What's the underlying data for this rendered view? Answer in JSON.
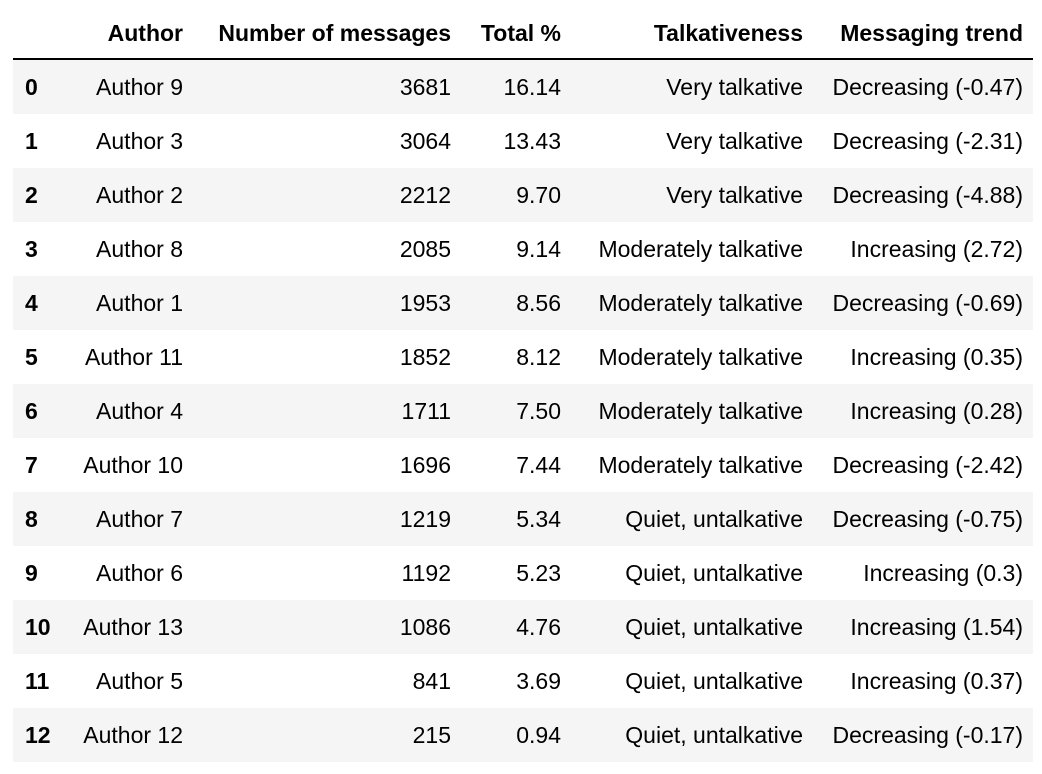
{
  "table": {
    "columns": {
      "index": "",
      "author": "Author",
      "messages": "Number of messages",
      "total": "Total %",
      "talkativeness": "Talkativeness",
      "trend": "Messaging trend"
    },
    "rows": [
      {
        "index": "0",
        "author": "Author 9",
        "messages": "3681",
        "total": "16.14",
        "talkativeness": "Very talkative",
        "trend": "Decreasing (-0.47)"
      },
      {
        "index": "1",
        "author": "Author 3",
        "messages": "3064",
        "total": "13.43",
        "talkativeness": "Very talkative",
        "trend": "Decreasing (-2.31)"
      },
      {
        "index": "2",
        "author": "Author 2",
        "messages": "2212",
        "total": "9.70",
        "talkativeness": "Very talkative",
        "trend": "Decreasing (-4.88)"
      },
      {
        "index": "3",
        "author": "Author 8",
        "messages": "2085",
        "total": "9.14",
        "talkativeness": "Moderately talkative",
        "trend": "Increasing (2.72)"
      },
      {
        "index": "4",
        "author": "Author 1",
        "messages": "1953",
        "total": "8.56",
        "talkativeness": "Moderately talkative",
        "trend": "Decreasing (-0.69)"
      },
      {
        "index": "5",
        "author": "Author 11",
        "messages": "1852",
        "total": "8.12",
        "talkativeness": "Moderately talkative",
        "trend": "Increasing (0.35)"
      },
      {
        "index": "6",
        "author": "Author 4",
        "messages": "1711",
        "total": "7.50",
        "talkativeness": "Moderately talkative",
        "trend": "Increasing (0.28)"
      },
      {
        "index": "7",
        "author": "Author 10",
        "messages": "1696",
        "total": "7.44",
        "talkativeness": "Moderately talkative",
        "trend": "Decreasing (-2.42)"
      },
      {
        "index": "8",
        "author": "Author 7",
        "messages": "1219",
        "total": "5.34",
        "talkativeness": "Quiet, untalkative",
        "trend": "Decreasing (-0.75)"
      },
      {
        "index": "9",
        "author": "Author 6",
        "messages": "1192",
        "total": "5.23",
        "talkativeness": "Quiet, untalkative",
        "trend": "Increasing (0.3)"
      },
      {
        "index": "10",
        "author": "Author 13",
        "messages": "1086",
        "total": "4.76",
        "talkativeness": "Quiet, untalkative",
        "trend": "Increasing (1.54)"
      },
      {
        "index": "11",
        "author": "Author 5",
        "messages": "841",
        "total": "3.69",
        "talkativeness": "Quiet, untalkative",
        "trend": "Increasing (0.37)"
      },
      {
        "index": "12",
        "author": "Author 12",
        "messages": "215",
        "total": "0.94",
        "talkativeness": "Quiet, untalkative",
        "trend": "Decreasing (-0.17)"
      }
    ]
  }
}
